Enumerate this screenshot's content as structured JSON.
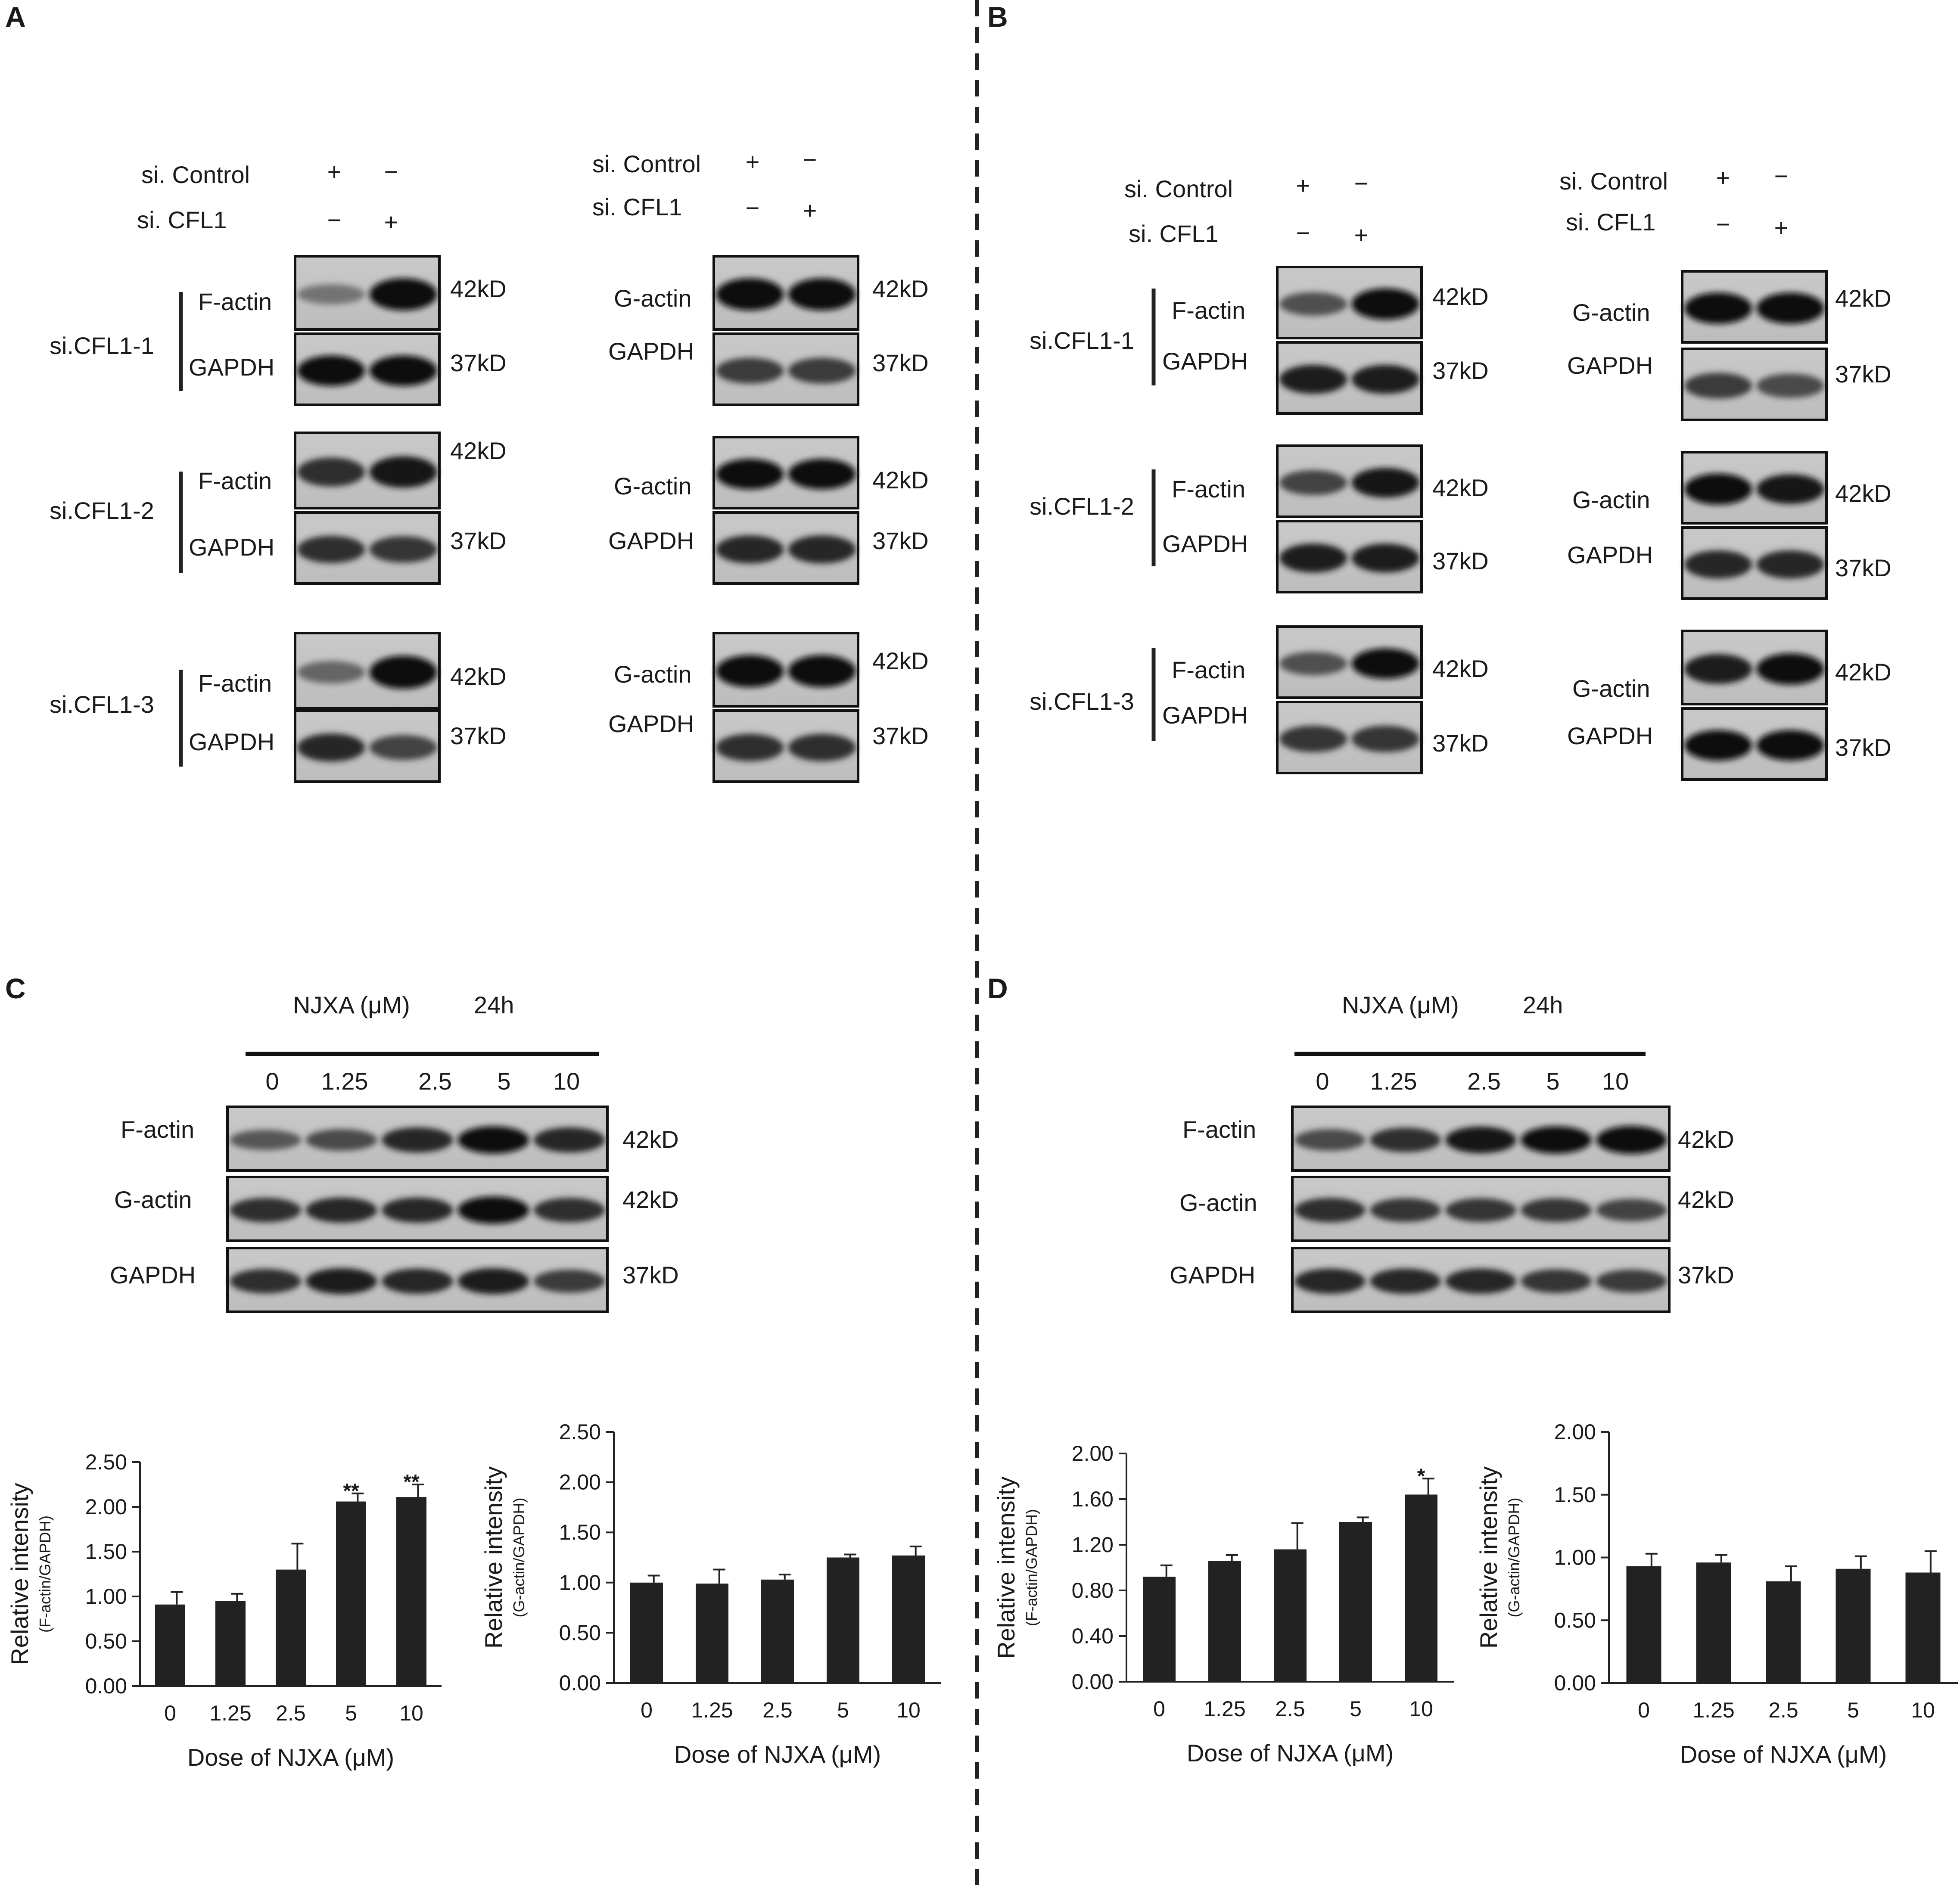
{
  "panels": {
    "A": {
      "letter": "A"
    },
    "B": {
      "letter": "B"
    },
    "C": {
      "letter": "C"
    },
    "D": {
      "letter": "D"
    }
  },
  "knockdown": {
    "si_control": "si. Control",
    "si_cfl1": "si. CFL1",
    "plus": "+",
    "minus": "−",
    "groups": [
      "si.CFL1-1",
      "si.CFL1-2",
      "si.CFL1-3"
    ],
    "f_actin": "F-actin",
    "g_actin": "G-actin",
    "gapdh": "GAPDH",
    "mw_42": "42kD",
    "mw_37": "37kD"
  },
  "dose_blot": {
    "treatment": "NJXA (μM)",
    "time": "24h",
    "doses": [
      "0",
      "1.25",
      "2.5",
      "5",
      "10"
    ],
    "f_actin": "F-actin",
    "g_actin": "G-actin",
    "gapdh": "GAPDH",
    "mw_42": "42kD",
    "mw_37": "37kD"
  },
  "chart_data": [
    {
      "type": "bar",
      "panel": "C",
      "categories": [
        "0",
        "1.25",
        "2.5",
        "5",
        "10"
      ],
      "values": [
        0.91,
        0.95,
        1.3,
        2.06,
        2.11
      ],
      "errors": [
        0.14,
        0.08,
        0.29,
        0.09,
        0.14
      ],
      "significance": [
        "",
        "",
        "",
        "**",
        "**"
      ],
      "xlabel": "Dose of NJXA (μM)",
      "ylabel": "Relative intensity",
      "ylabel_sub": "(F-actin/GAPDH)",
      "ylim": [
        0,
        2.5
      ],
      "yticks": [
        "0.00",
        "0.50",
        "1.00",
        "1.50",
        "2.00",
        "2.50"
      ],
      "bar_color": "#222222"
    },
    {
      "type": "bar",
      "panel": "C",
      "categories": [
        "0",
        "1.25",
        "2.5",
        "5",
        "10"
      ],
      "values": [
        1.0,
        0.99,
        1.03,
        1.25,
        1.27
      ],
      "errors": [
        0.07,
        0.14,
        0.05,
        0.03,
        0.09
      ],
      "significance": [
        "",
        "",
        "",
        "",
        ""
      ],
      "xlabel": "Dose of NJXA (μM)",
      "ylabel": "Relative intensity",
      "ylabel_sub": "(G-actin/GAPDH)",
      "ylim": [
        0,
        2.5
      ],
      "yticks": [
        "0.00",
        "0.50",
        "1.00",
        "1.50",
        "2.00",
        "2.50"
      ],
      "bar_color": "#222222"
    },
    {
      "type": "bar",
      "panel": "D",
      "categories": [
        "0",
        "1.25",
        "2.5",
        "5",
        "10"
      ],
      "values": [
        0.92,
        1.06,
        1.16,
        1.4,
        1.64
      ],
      "errors": [
        0.1,
        0.05,
        0.23,
        0.04,
        0.14
      ],
      "significance": [
        "",
        "",
        "",
        "",
        "*"
      ],
      "xlabel": "Dose of NJXA (μM)",
      "ylabel": "Relative intensity",
      "ylabel_sub": "(F-actin/GAPDH)",
      "ylim": [
        0,
        2.0
      ],
      "yticks": [
        "0.00",
        "0.40",
        "0.80",
        "1.20",
        "1.60",
        "2.00"
      ],
      "bar_color": "#222222"
    },
    {
      "type": "bar",
      "panel": "D",
      "categories": [
        "0",
        "1.25",
        "2.5",
        "5",
        "10"
      ],
      "values": [
        0.93,
        0.96,
        0.81,
        0.91,
        0.88
      ],
      "errors": [
        0.1,
        0.06,
        0.12,
        0.1,
        0.17
      ],
      "significance": [
        "",
        "",
        "",
        "",
        ""
      ],
      "xlabel": "Dose of NJXA (μM)",
      "ylabel": "Relative intensity",
      "ylabel_sub": "(G-actin/GAPDH)",
      "ylim": [
        0,
        2.0
      ],
      "yticks": [
        "0.00",
        "0.50",
        "1.00",
        "1.50",
        "2.00"
      ],
      "bar_color": "#222222"
    }
  ]
}
